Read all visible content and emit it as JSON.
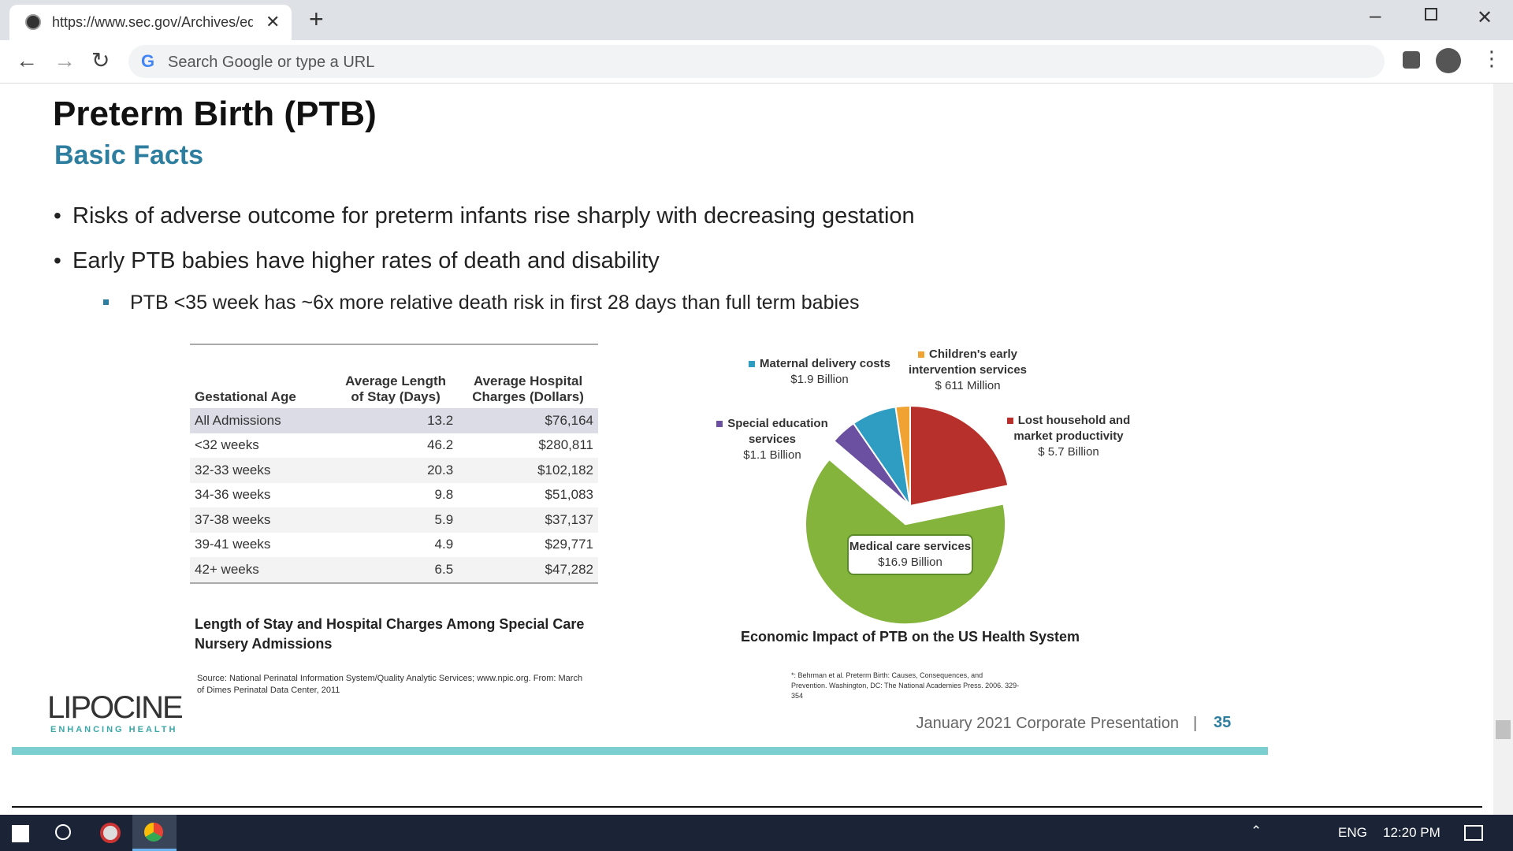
{
  "browser": {
    "tab_title": "https://www.sec.gov/Archives/ed",
    "address_placeholder": "Search Google or type a URL"
  },
  "slide": {
    "title": "Preterm Birth (PTB)",
    "subtitle": "Basic Facts",
    "bullets": [
      "Risks of adverse outcome for preterm infants rise sharply with decreasing gestation",
      "Early PTB babies have higher rates of death and disability"
    ],
    "sub_bullet": "PTB <35 week has ~6x more relative death risk in first 28 days than full term babies",
    "table": {
      "headers": [
        "Gestational Age",
        "Average Length of Stay (Days)",
        "Average Hospital Charges (Dollars)"
      ],
      "rows": [
        [
          "All Admissions",
          "13.2",
          "$76,164"
        ],
        [
          "<32 weeks",
          "46.2",
          "$280,811"
        ],
        [
          "32-33 weeks",
          "20.3",
          "$102,182"
        ],
        [
          "34-36 weeks",
          "9.8",
          "$51,083"
        ],
        [
          "37-38 weeks",
          "5.9",
          "$37,137"
        ],
        [
          "39-41 weeks",
          "4.9",
          "$29,771"
        ],
        [
          "42+ weeks",
          "6.5",
          "$47,282"
        ]
      ],
      "caption": "Length of Stay and Hospital Charges Among Special Care Nursery Admissions",
      "source": "Source: National Perinatal Information System/Quality Analytic Services; www.npic.org. From: March of Dimes Perinatal Data Center, 2011"
    },
    "pie_footnote": "*: Behrman et al. Preterm Birth: Causes, Consequences, and Prevention. Washington, DC: The National Academies Press. 2006. 329-354",
    "logo": "LIPOCINE",
    "logo_tagline": "ENHANCING HEALTH",
    "footer": "January 2021 Corporate Presentation",
    "page_number": "35"
  },
  "chart_data": {
    "type": "pie",
    "title": "Economic Impact of PTB on the US Health System",
    "categories": [
      "Lost household and market productivity",
      "Medical care services",
      "Special education services",
      "Maternal delivery costs",
      "Children's early intervention services"
    ],
    "values": [
      5.7,
      16.9,
      1.1,
      1.9,
      0.611
    ],
    "value_labels": [
      "$ 5.7 Billion",
      "$16.9 Billion",
      "$1.1 Billion",
      "$1.9 Billion",
      "$ 611 Million"
    ],
    "colors": [
      "#b8302b",
      "#84b43c",
      "#6b4fa0",
      "#2f9cc2",
      "#f0a232"
    ]
  },
  "taskbar": {
    "language": "ENG",
    "time": "12:20 PM"
  }
}
